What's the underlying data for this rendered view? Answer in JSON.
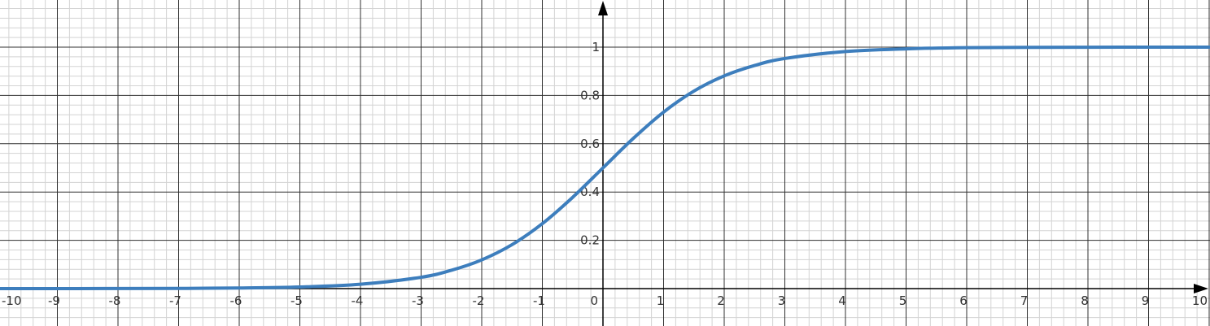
{
  "chart_data": {
    "type": "line",
    "title": "",
    "xlabel": "",
    "ylabel": "",
    "xlim": [
      -10,
      10
    ],
    "ylim": [
      0,
      1
    ],
    "grid": true,
    "x_ticks": [
      -10,
      -9,
      -8,
      -7,
      -6,
      -5,
      -4,
      -3,
      -2,
      -1,
      1,
      2,
      3,
      4,
      5,
      6,
      7,
      8,
      9,
      10
    ],
    "x_tick_labels": [
      "-10",
      "-9",
      "-8",
      "-7",
      "-6",
      "-5",
      "-4",
      "-3",
      "-2",
      "-1",
      "1",
      "2",
      "3",
      "4",
      "5",
      "6",
      "7",
      "8",
      "9",
      "10"
    ],
    "origin_label": "0",
    "y_ticks": [
      0.2,
      0.4,
      0.6,
      0.8,
      1
    ],
    "y_tick_labels": [
      "0.2",
      "0.4",
      "0.6",
      "0.8",
      "1"
    ],
    "series": [
      {
        "color": "#3d7ebd",
        "x": [
          -10,
          -9,
          -8,
          -7,
          -6,
          -5,
          -4,
          -3,
          -2.5,
          -2,
          -1.5,
          -1,
          -0.5,
          0,
          0.5,
          1,
          1.5,
          2,
          2.5,
          3,
          4,
          5,
          6,
          7,
          8,
          9,
          10
        ],
        "y": [
          5e-05,
          0.0001,
          0.0003,
          0.0009,
          0.0025,
          0.0067,
          0.018,
          0.047,
          0.076,
          0.119,
          0.182,
          0.269,
          0.378,
          0.5,
          0.622,
          0.731,
          0.818,
          0.881,
          0.924,
          0.953,
          0.982,
          0.993,
          0.998,
          0.999,
          0.9997,
          0.9999,
          1.0
        ]
      }
    ]
  },
  "colors": {
    "minor_grid": "#d3d3d3",
    "major_grid": "#303030",
    "axis": "#000000",
    "curve": "#3d7ebd"
  }
}
